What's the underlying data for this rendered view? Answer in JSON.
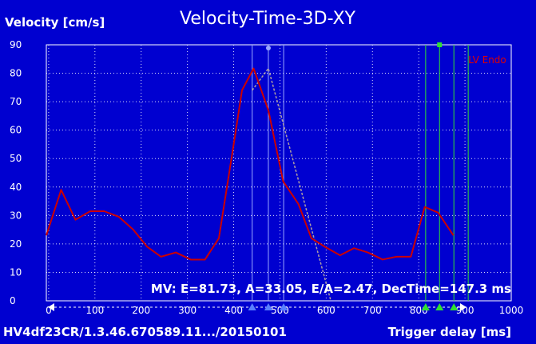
{
  "chart_data": {
    "type": "line",
    "title": "Velocity-Time-3D-XY",
    "ylabel": "Velocity [cm/s]",
    "xlabel": "Trigger delay [ms]",
    "study_id": "HV4df23CR/1.3.46.670589.11.../20150101",
    "annotation": "MV: E=81.73, A=33.05, E/A=2.47, DecTime=147.3 ms",
    "xlim": [
      -5,
      1000
    ],
    "ylim": [
      0,
      90
    ],
    "x_ticks": [
      0,
      100,
      200,
      300,
      400,
      500,
      600,
      700,
      800,
      900,
      1000
    ],
    "y_ticks": [
      0,
      10,
      20,
      30,
      40,
      50,
      60,
      70,
      80,
      90
    ],
    "grid": true,
    "legend_position": "top-right",
    "series": [
      {
        "name": "LV Endo",
        "color": "#cc0000",
        "x": [
          -5,
          27,
          58,
          90,
          120,
          152,
          183,
          213,
          243,
          275,
          307,
          338,
          368,
          400,
          418,
          443,
          475,
          507,
          540,
          568,
          597,
          630,
          660,
          690,
          722,
          752,
          783,
          813,
          842,
          875,
          905
        ],
        "y": [
          23,
          39,
          28.5,
          31.5,
          31.5,
          29.5,
          25,
          19,
          15.5,
          17,
          14.5,
          14.5,
          22,
          55,
          74,
          81.7,
          67,
          42,
          34,
          22,
          19,
          16,
          18.5,
          17,
          14.5,
          15.5,
          15.5,
          33,
          31,
          23,
          null
        ]
      }
    ],
    "fit_line": {
      "color": "#b0a0a0",
      "x": [
        440,
        475,
        610
      ],
      "y": [
        74,
        81.7,
        0
      ]
    },
    "markers": {
      "mv_lines_x": [
        440,
        475,
        508
      ],
      "mv_line_color": "#9aa8ff",
      "e_peak_x": 475,
      "green_lines_x": [
        815,
        845,
        876,
        907
      ],
      "green_line_color": "#30e030",
      "green_top_x": 845
    }
  }
}
